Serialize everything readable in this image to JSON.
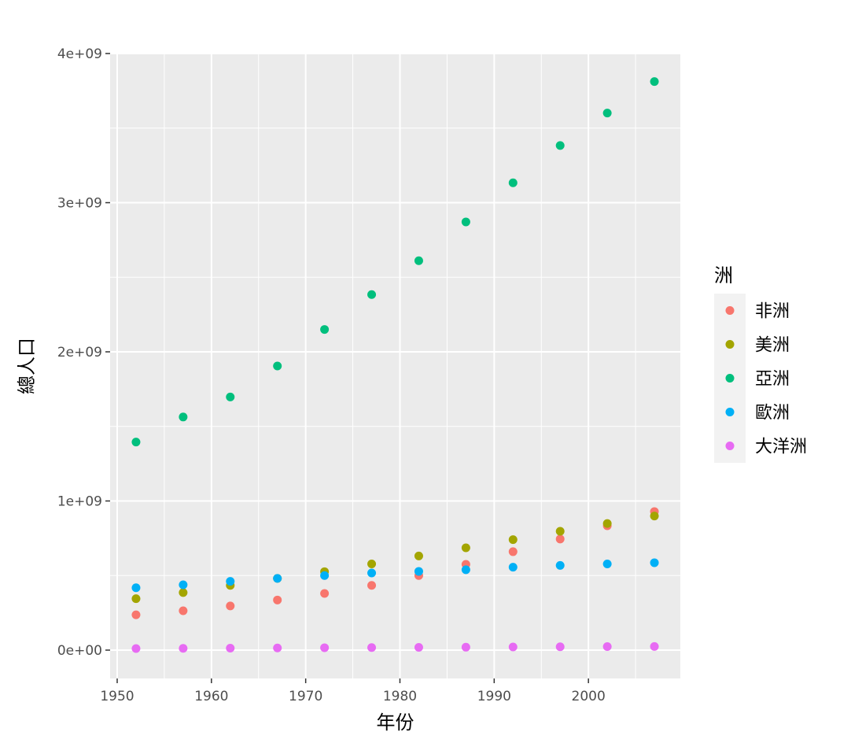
{
  "chart_data": {
    "type": "scatter",
    "xlabel": "年份",
    "ylabel": "總人口",
    "xlim": [
      1949.25,
      2009.75
    ],
    "ylim": [
      -190000000.0,
      4000000000.0
    ],
    "xticks": [
      1950,
      1960,
      1970,
      1980,
      1990,
      2000
    ],
    "xtick_labels": [
      "1950",
      "1960",
      "1970",
      "1980",
      "1990",
      "2000"
    ],
    "yticks": [
      0,
      1000000000,
      2000000000,
      3000000000,
      4000000000
    ],
    "ytick_labels": [
      "0e+00",
      "1e+09",
      "2e+09",
      "3e+09",
      "4e+09"
    ],
    "grid": true,
    "legend": {
      "title": "洲",
      "position": "right"
    },
    "x": [
      1952,
      1957,
      1962,
      1967,
      1972,
      1977,
      1982,
      1987,
      1992,
      1997,
      2002,
      2007
    ],
    "series": [
      {
        "name": "非洲",
        "color": "#F8766D",
        "values": [
          237000000,
          264000000,
          296000000,
          336000000,
          380000000,
          434000000,
          500000000,
          575000000,
          660000000,
          745000000,
          834000000,
          929000000
        ]
      },
      {
        "name": "美洲",
        "color": "#A3A500",
        "values": [
          345000000,
          386000000,
          434000000,
          481000000,
          526000000,
          578000000,
          631000000,
          686000000,
          741000000,
          797000000,
          849000000,
          899000000
        ]
      },
      {
        "name": "亞洲",
        "color": "#00BF7D",
        "values": [
          1395000000,
          1563000000,
          1697000000,
          1905000000,
          2150000000,
          2384000000,
          2611000000,
          2871000000,
          3133000000,
          3383000000,
          3601000000,
          3812000000
        ]
      },
      {
        "name": "歐洲",
        "color": "#00B0F6",
        "values": [
          418000000,
          438000000,
          461000000,
          481000000,
          500000000,
          517000000,
          528000000,
          539000000,
          556000000,
          568000000,
          578000000,
          586000000
        ]
      },
      {
        "name": "大洋洲",
        "color": "#E76BF3",
        "values": [
          10700000,
          11900000,
          13300000,
          14600000,
          16100000,
          17200000,
          18400000,
          19500000,
          20900000,
          22200000,
          23500000,
          24500000
        ]
      }
    ]
  }
}
